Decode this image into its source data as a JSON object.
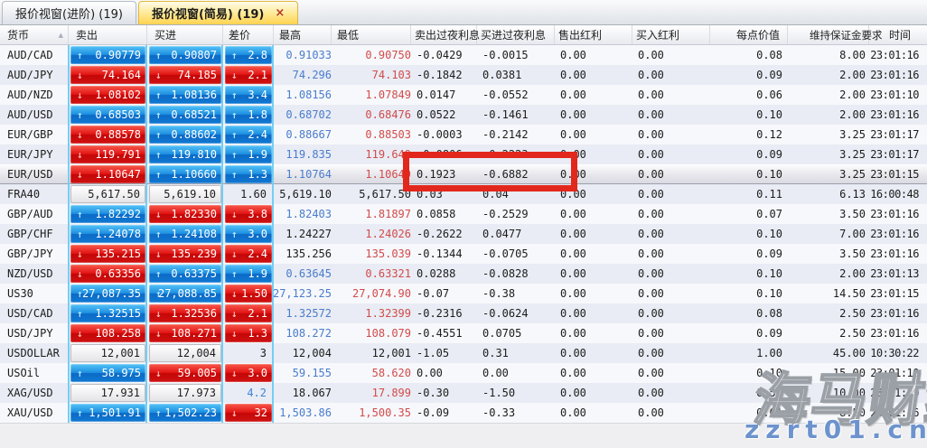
{
  "tabs": [
    {
      "label": "报价视窗(进阶) (19)",
      "active": false
    },
    {
      "label": "报价视窗(简易) (19)",
      "active": true,
      "close_glyph": "×"
    }
  ],
  "columns": [
    "货币",
    "卖出",
    "买进",
    "差价",
    "最高",
    "最低",
    "卖出过夜利息",
    "买进过夜利息",
    "售出红利",
    "买入红利",
    "每点价值",
    "维持保证金要求",
    "时间"
  ],
  "sort_icon": "▲",
  "colors": {
    "buy_up_blue": "#1d8fe0",
    "sell_down_red": "#e21414",
    "high_blue": "#4a7ccc",
    "low_red": "#d14b4b",
    "disabled_gray": "#b0b3ba",
    "annotation_red": "#e2271c",
    "active_tab_yellow": "#ffd34f",
    "watermark_blue": "#6d93cd",
    "column_separator_cyan": "#74cef2"
  },
  "rows": [
    {
      "pair": "AUD/CAD",
      "sell": {
        "v": "0.90779",
        "s": "blue",
        "a": "up"
      },
      "buy": {
        "v": "0.90807",
        "s": "blue",
        "a": "up"
      },
      "spread": {
        "v": "2.8",
        "s": "blue",
        "a": "up"
      },
      "high": {
        "v": "0.91033",
        "c": "hblue"
      },
      "low": {
        "v": "0.90750",
        "c": "red"
      },
      "ss": "-0.0429",
      "bs": "-0.0015",
      "sd": "0.00",
      "bd": "0.00",
      "pv": "0.08",
      "mg": "8.00",
      "t": "23:01:16"
    },
    {
      "pair": "AUD/JPY",
      "sell": {
        "v": "74.164",
        "s": "red",
        "a": "down"
      },
      "buy": {
        "v": "74.185",
        "s": "red",
        "a": "down"
      },
      "spread": {
        "v": "2.1",
        "s": "red",
        "a": "down"
      },
      "high": {
        "v": "74.296",
        "c": "hblue"
      },
      "low": {
        "v": "74.103",
        "c": "red"
      },
      "ss": "-0.1842",
      "bs": "0.0381",
      "sd": "0.00",
      "bd": "0.00",
      "pv": "0.09",
      "mg": "2.00",
      "t": "23:01:16"
    },
    {
      "pair": "AUD/NZD",
      "sell": {
        "v": "1.08102",
        "s": "red",
        "a": "down"
      },
      "buy": {
        "v": "1.08136",
        "s": "blue",
        "a": "up"
      },
      "spread": {
        "v": "3.4",
        "s": "blue",
        "a": "up"
      },
      "high": {
        "v": "1.08156",
        "c": "hblue"
      },
      "low": {
        "v": "1.07849",
        "c": "red"
      },
      "ss": "0.0147",
      "bs": "-0.0552",
      "sd": "0.00",
      "bd": "0.00",
      "pv": "0.06",
      "mg": "2.00",
      "t": "23:01:10"
    },
    {
      "pair": "AUD/USD",
      "sell": {
        "v": "0.68503",
        "s": "blue",
        "a": "up"
      },
      "buy": {
        "v": "0.68521",
        "s": "blue",
        "a": "up"
      },
      "spread": {
        "v": "1.8",
        "s": "blue",
        "a": "up"
      },
      "high": {
        "v": "0.68702",
        "c": "hblue"
      },
      "low": {
        "v": "0.68476",
        "c": "red"
      },
      "ss": "0.0522",
      "bs": "-0.1461",
      "sd": "0.00",
      "bd": "0.00",
      "pv": "0.10",
      "mg": "2.00",
      "t": "23:01:16"
    },
    {
      "pair": "EUR/GBP",
      "sell": {
        "v": "0.88578",
        "s": "red",
        "a": "down"
      },
      "buy": {
        "v": "0.88602",
        "s": "blue",
        "a": "up"
      },
      "spread": {
        "v": "2.4",
        "s": "blue",
        "a": "up"
      },
      "high": {
        "v": "0.88667",
        "c": "hblue"
      },
      "low": {
        "v": "0.88503",
        "c": "red"
      },
      "ss": "-0.0003",
      "bs": "-0.2142",
      "sd": "0.00",
      "bd": "0.00",
      "pv": "0.12",
      "mg": "3.25",
      "t": "23:01:17"
    },
    {
      "pair": "EUR/JPY",
      "sell": {
        "v": "119.791",
        "s": "red",
        "a": "down"
      },
      "buy": {
        "v": "119.810",
        "s": "blue",
        "a": "up"
      },
      "spread": {
        "v": "1.9",
        "s": "blue",
        "a": "up"
      },
      "high": {
        "v": "119.835",
        "c": "hblue"
      },
      "low": {
        "v": "119.649",
        "c": "red"
      },
      "ss": "-0.0806",
      "bs": "-0.2223",
      "sd": "0.00",
      "bd": "0.00",
      "pv": "0.09",
      "mg": "3.25",
      "t": "23:01:17"
    },
    {
      "pair": "EUR/USD",
      "sel": true,
      "sell": {
        "v": "1.10647",
        "s": "red",
        "a": "down"
      },
      "buy": {
        "v": "1.10660",
        "s": "blue",
        "a": "up"
      },
      "spread": {
        "v": "1.3",
        "s": "blue",
        "a": "up"
      },
      "high": {
        "v": "1.10764",
        "c": "hblue"
      },
      "low": {
        "v": "1.10649",
        "c": "red"
      },
      "ss": "0.1923",
      "bs": "-0.6882",
      "sd": "0.00",
      "bd": "0.00",
      "pv": "0.10",
      "mg": "3.25",
      "t": "23:01:15"
    },
    {
      "pair": "FRA40",
      "dis": true,
      "sell": {
        "v": "5,617.50",
        "s": "neutral",
        "tc": "gray"
      },
      "buy": {
        "v": "5,619.10",
        "s": "neutral",
        "tc": "gray"
      },
      "spread": {
        "v": "1.60",
        "s": "plain",
        "tc": "black"
      },
      "high": {
        "v": "5,619.10",
        "c": "black"
      },
      "low": {
        "v": "5,617.50",
        "c": "black"
      },
      "ss": "0.03",
      "bs": "0.04",
      "sd": "0.00",
      "bd": "0.00",
      "pv": "0.11",
      "mg": "6.13",
      "t": "16:00:48"
    },
    {
      "pair": "GBP/AUD",
      "sell": {
        "v": "1.82292",
        "s": "blue",
        "a": "up"
      },
      "buy": {
        "v": "1.82330",
        "s": "red",
        "a": "down"
      },
      "spread": {
        "v": "3.8",
        "s": "red",
        "a": "down"
      },
      "high": {
        "v": "1.82403",
        "c": "hblue"
      },
      "low": {
        "v": "1.81897",
        "c": "red"
      },
      "ss": "0.0858",
      "bs": "-0.2529",
      "sd": "0.00",
      "bd": "0.00",
      "pv": "0.07",
      "mg": "3.50",
      "t": "23:01:16"
    },
    {
      "pair": "GBP/CHF",
      "sell": {
        "v": "1.24078",
        "s": "blue",
        "a": "up"
      },
      "buy": {
        "v": "1.24108",
        "s": "blue",
        "a": "up"
      },
      "spread": {
        "v": "3.0",
        "s": "blue",
        "a": "up"
      },
      "high": {
        "v": "1.24227",
        "c": "black"
      },
      "low": {
        "v": "1.24026",
        "c": "red"
      },
      "ss": "-0.2622",
      "bs": "0.0477",
      "sd": "0.00",
      "bd": "0.00",
      "pv": "0.10",
      "mg": "7.00",
      "t": "23:01:16"
    },
    {
      "pair": "GBP/JPY",
      "sell": {
        "v": "135.215",
        "s": "red",
        "a": "down"
      },
      "buy": {
        "v": "135.239",
        "s": "red",
        "a": "down"
      },
      "spread": {
        "v": "2.4",
        "s": "red",
        "a": "down"
      },
      "high": {
        "v": "135.256",
        "c": "black"
      },
      "low": {
        "v": "135.039",
        "c": "red"
      },
      "ss": "-0.1344",
      "bs": "-0.0705",
      "sd": "0.00",
      "bd": "0.00",
      "pv": "0.09",
      "mg": "3.50",
      "t": "23:01:16"
    },
    {
      "pair": "NZD/USD",
      "sell": {
        "v": "0.63356",
        "s": "red",
        "a": "down"
      },
      "buy": {
        "v": "0.63375",
        "s": "blue",
        "a": "up"
      },
      "spread": {
        "v": "1.9",
        "s": "blue",
        "a": "up"
      },
      "high": {
        "v": "0.63645",
        "c": "hblue"
      },
      "low": {
        "v": "0.63321",
        "c": "red"
      },
      "ss": "0.0288",
      "bs": "-0.0828",
      "sd": "0.00",
      "bd": "0.00",
      "pv": "0.10",
      "mg": "2.00",
      "t": "23:01:13"
    },
    {
      "pair": "US30",
      "sell": {
        "v": "27,087.35",
        "s": "blue",
        "a": "up"
      },
      "buy": {
        "v": "27,088.85",
        "s": "blue",
        "a": "up"
      },
      "spread": {
        "v": "1.50",
        "s": "red",
        "a": "down"
      },
      "high": {
        "v": "27,123.25",
        "c": "hblue"
      },
      "low": {
        "v": "27,074.90",
        "c": "red"
      },
      "ss": "-0.07",
      "bs": "-0.38",
      "sd": "0.00",
      "bd": "0.00",
      "pv": "0.10",
      "mg": "14.50",
      "t": "23:01:15"
    },
    {
      "pair": "USD/CAD",
      "sell": {
        "v": "1.32515",
        "s": "blue",
        "a": "up"
      },
      "buy": {
        "v": "1.32536",
        "s": "red",
        "a": "down"
      },
      "spread": {
        "v": "2.1",
        "s": "red",
        "a": "down"
      },
      "high": {
        "v": "1.32572",
        "c": "hblue"
      },
      "low": {
        "v": "1.32399",
        "c": "red"
      },
      "ss": "-0.2316",
      "bs": "-0.0624",
      "sd": "0.00",
      "bd": "0.00",
      "pv": "0.08",
      "mg": "2.50",
      "t": "23:01:16"
    },
    {
      "pair": "USD/JPY",
      "sell": {
        "v": "108.258",
        "s": "red",
        "a": "down"
      },
      "buy": {
        "v": "108.271",
        "s": "red",
        "a": "down"
      },
      "spread": {
        "v": "1.3",
        "s": "red",
        "a": "down"
      },
      "high": {
        "v": "108.272",
        "c": "hblue"
      },
      "low": {
        "v": "108.079",
        "c": "red"
      },
      "ss": "-0.4551",
      "bs": "0.0705",
      "sd": "0.00",
      "bd": "0.00",
      "pv": "0.09",
      "mg": "2.50",
      "t": "23:01:16"
    },
    {
      "pair": "USDOLLAR",
      "sell": {
        "v": "12,001",
        "s": "neutral",
        "tc": "black"
      },
      "buy": {
        "v": "12,004",
        "s": "neutral",
        "tc": "black"
      },
      "spread": {
        "v": "3",
        "s": "plain",
        "tc": "black"
      },
      "high": {
        "v": "12,004",
        "c": "black"
      },
      "low": {
        "v": "12,001",
        "c": "black"
      },
      "ss": "-1.05",
      "bs": "0.31",
      "sd": "0.00",
      "bd": "0.00",
      "pv": "1.00",
      "mg": "45.00",
      "t": "10:30:22"
    },
    {
      "pair": "USOil",
      "sell": {
        "v": "58.975",
        "s": "blue",
        "a": "up"
      },
      "buy": {
        "v": "59.005",
        "s": "red",
        "a": "down"
      },
      "spread": {
        "v": "3.0",
        "s": "red",
        "a": "down"
      },
      "high": {
        "v": "59.155",
        "c": "hblue"
      },
      "low": {
        "v": "58.620",
        "c": "red"
      },
      "ss": "0.00",
      "bs": "0.00",
      "sd": "0.00",
      "bd": "0.00",
      "pv": "0.10",
      "mg": "15.00",
      "t": "23:01:10"
    },
    {
      "pair": "XAG/USD",
      "sell": {
        "v": "17.931",
        "s": "neutral",
        "tc": "black"
      },
      "buy": {
        "v": "17.973",
        "s": "neutral",
        "tc": "blue"
      },
      "spread": {
        "v": "4.2",
        "s": "plain",
        "tc": "blue"
      },
      "high": {
        "v": "18.067",
        "c": "black"
      },
      "low": {
        "v": "17.899",
        "c": "red"
      },
      "ss": "-0.30",
      "bs": "-1.50",
      "sd": "0.00",
      "bd": "0.00",
      "pv": "0.50",
      "mg": "10.00",
      "t": "23:01:09"
    },
    {
      "pair": "XAU/USD",
      "sell": {
        "v": "1,501.91",
        "s": "blue",
        "a": "up"
      },
      "buy": {
        "v": "1,502.23",
        "s": "blue",
        "a": "up"
      },
      "spread": {
        "v": "32",
        "s": "red",
        "a": "down"
      },
      "high": {
        "v": "1,503.86",
        "c": "hblue"
      },
      "low": {
        "v": "1,500.35",
        "c": "red"
      },
      "ss": "-0.09",
      "bs": "-0.33",
      "sd": "0.00",
      "bd": "0.00",
      "pv": "0.01",
      "mg": "8.50",
      "t": "23:01:16"
    }
  ],
  "annotation": {
    "label": "highlight-eurusd-overnight-interest",
    "color": "#e2271c"
  },
  "watermark": {
    "brand": "海马财经",
    "site": "zzrt01.cn"
  }
}
